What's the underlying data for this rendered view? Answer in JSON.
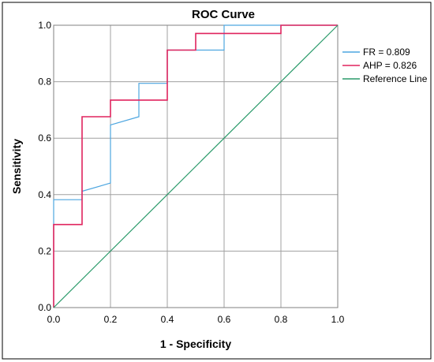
{
  "chart_data": {
    "type": "line",
    "title": "ROC Curve",
    "xlabel": "1 - Specificity",
    "ylabel": "Sensitivity",
    "xlim": [
      0.0,
      1.0
    ],
    "ylim": [
      0.0,
      1.0
    ],
    "x_ticks": [
      "0.0",
      "0.2",
      "0.4",
      "0.6",
      "0.8",
      "1.0"
    ],
    "y_ticks": [
      "0.0",
      "0.2",
      "0.4",
      "0.6",
      "0.8",
      "1.0"
    ],
    "grid": true,
    "legend_position": "right",
    "series": [
      {
        "name": "FR = 0.809",
        "color": "#4da6e0",
        "points": [
          [
            0.0,
            0.0
          ],
          [
            0.0,
            0.382
          ],
          [
            0.1,
            0.382
          ],
          [
            0.1,
            0.412
          ],
          [
            0.2,
            0.441
          ],
          [
            0.2,
            0.647
          ],
          [
            0.3,
            0.676
          ],
          [
            0.3,
            0.794
          ],
          [
            0.4,
            0.794
          ],
          [
            0.4,
            0.912
          ],
          [
            0.6,
            0.912
          ],
          [
            0.6,
            1.0
          ],
          [
            1.0,
            1.0
          ]
        ]
      },
      {
        "name": "AHP = 0.826",
        "color": "#e0245e",
        "points": [
          [
            0.0,
            0.0
          ],
          [
            0.0,
            0.294
          ],
          [
            0.1,
            0.294
          ],
          [
            0.1,
            0.676
          ],
          [
            0.2,
            0.676
          ],
          [
            0.2,
            0.735
          ],
          [
            0.4,
            0.735
          ],
          [
            0.4,
            0.912
          ],
          [
            0.5,
            0.912
          ],
          [
            0.5,
            0.971
          ],
          [
            0.8,
            0.971
          ],
          [
            0.8,
            1.0
          ],
          [
            1.0,
            1.0
          ]
        ]
      },
      {
        "name": "Reference Line",
        "color": "#2a9a6a",
        "points": [
          [
            0.0,
            0.0
          ],
          [
            1.0,
            1.0
          ]
        ]
      }
    ]
  }
}
